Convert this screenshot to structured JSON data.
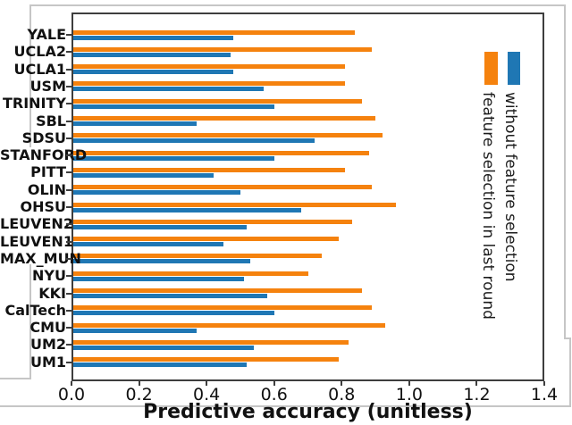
{
  "figure": {
    "xlabel": "Predictive accuracy (unitless)",
    "xtick_labels": [
      "0.0",
      "0.2",
      "0.4",
      "0.6",
      "0.8",
      "1.0",
      "1.2",
      "1.4"
    ]
  },
  "legend": {
    "items": [
      {
        "label": "feature selection in last round",
        "color": "#f5820e"
      },
      {
        "label": "without feature selection",
        "color": "#1f77b4"
      }
    ]
  },
  "chart_data": {
    "type": "bar",
    "orientation": "horizontal",
    "title": "",
    "xlabel": "Predictive accuracy (unitless)",
    "ylabel": "",
    "xlim": [
      0,
      1.4
    ],
    "xticks": [
      0.0,
      0.2,
      0.4,
      0.6,
      0.8,
      1.0,
      1.2,
      1.4
    ],
    "grid": false,
    "legend_position": "inside upper right, labels rotated 90 degrees",
    "categories": [
      "YALE",
      "UCLA2",
      "UCLA1",
      "USM",
      "TRINITY",
      "SBL",
      "SDSU",
      "STANFORD",
      "PITT",
      "OLIN",
      "OHSU",
      "LEUVEN2",
      "LEUVEN1",
      "MAX_MUN",
      "NYU",
      "KKI",
      "CalTech",
      "CMU",
      "UM2",
      "UM1"
    ],
    "series": [
      {
        "name": "feature selection in last round",
        "color": "#f5820e",
        "values": [
          0.84,
          0.89,
          0.81,
          0.81,
          0.86,
          0.9,
          0.92,
          0.88,
          0.81,
          0.89,
          0.96,
          0.83,
          0.79,
          0.74,
          0.7,
          0.86,
          0.89,
          0.93,
          0.82,
          0.79
        ]
      },
      {
        "name": "without feature selection",
        "color": "#1f77b4",
        "values": [
          0.48,
          0.47,
          0.48,
          0.57,
          0.6,
          0.37,
          0.72,
          0.6,
          0.42,
          0.5,
          0.68,
          0.52,
          0.45,
          0.53,
          0.51,
          0.58,
          0.6,
          0.37,
          0.54,
          0.52
        ]
      }
    ]
  }
}
